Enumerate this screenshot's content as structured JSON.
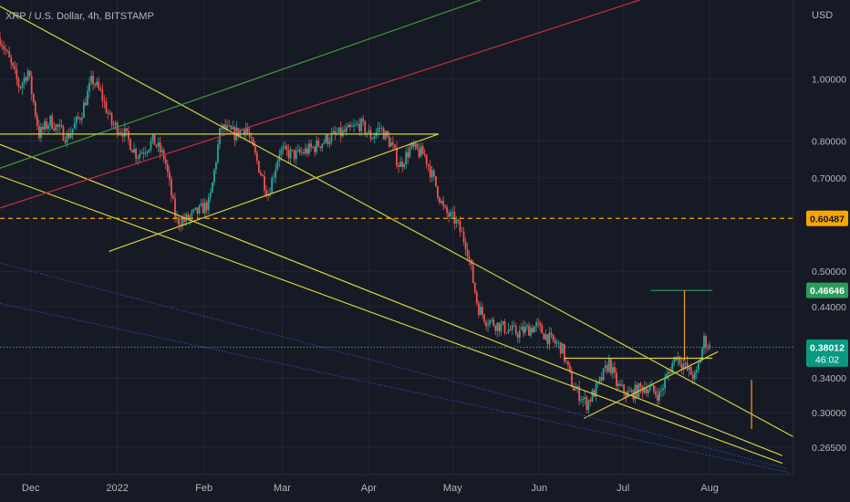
{
  "header": {
    "title": "XRP / U.S. Dollar, 4h, BITSTAMP",
    "currency": "USD"
  },
  "colors": {
    "background": "#161a25",
    "grid": "#232734",
    "axis_text": "#b2b5be",
    "up_candle": "#26a69a",
    "down_candle": "#ef5350",
    "trendline_yellow": "#d4cf3e",
    "line_red": "#c2313c",
    "line_green": "#3d9b3d",
    "line_blue": "#3347c8",
    "line_orange": "#f0a020",
    "level_green": "#2e9c5c",
    "price_badge": "#089981",
    "level_badge": "#f7a600"
  },
  "chart_data": {
    "type": "candlestick",
    "y_scale": "log",
    "ylim": [
      0.24,
      1.33
    ],
    "x_start": "2021-11-20",
    "x_end": "2022-08-31",
    "x_ticks": [
      {
        "label": "Dec",
        "date": "2021-12-01"
      },
      {
        "label": "2022",
        "date": "2022-01-01"
      },
      {
        "label": "Feb",
        "date": "2022-02-01"
      },
      {
        "label": "Mar",
        "date": "2022-03-01"
      },
      {
        "label": "Apr",
        "date": "2022-04-01"
      },
      {
        "label": "May",
        "date": "2022-05-01"
      },
      {
        "label": "Jun",
        "date": "2022-06-01"
      },
      {
        "label": "Jul",
        "date": "2022-07-01"
      },
      {
        "label": "Aug",
        "date": "2022-08-01"
      }
    ],
    "y_ticks": [
      "1.00000",
      "0.80000",
      "0.70000",
      "0.50000",
      "0.44000",
      "0.34000",
      "0.30000",
      "0.26500"
    ],
    "price_path": [
      [
        "2021-11-20",
        1.16
      ],
      [
        "2021-11-23",
        1.08
      ],
      [
        "2021-11-27",
        0.97
      ],
      [
        "2021-11-30",
        1.03
      ],
      [
        "2021-12-04",
        0.82
      ],
      [
        "2021-12-08",
        0.86
      ],
      [
        "2021-12-14",
        0.81
      ],
      [
        "2021-12-19",
        0.88
      ],
      [
        "2021-12-23",
        1.0
      ],
      [
        "2021-12-26",
        0.95
      ],
      [
        "2021-12-30",
        0.85
      ],
      [
        "2022-01-03",
        0.83
      ],
      [
        "2022-01-08",
        0.76
      ],
      [
        "2022-01-14",
        0.8
      ],
      [
        "2022-01-18",
        0.75
      ],
      [
        "2022-01-22",
        0.6
      ],
      [
        "2022-01-25",
        0.6
      ],
      [
        "2022-01-30",
        0.62
      ],
      [
        "2022-02-03",
        0.64
      ],
      [
        "2022-02-07",
        0.84
      ],
      [
        "2022-02-12",
        0.82
      ],
      [
        "2022-02-16",
        0.84
      ],
      [
        "2022-02-21",
        0.72
      ],
      [
        "2022-02-24",
        0.66
      ],
      [
        "2022-02-28",
        0.77
      ],
      [
        "2022-03-06",
        0.76
      ],
      [
        "2022-03-12",
        0.78
      ],
      [
        "2022-03-18",
        0.81
      ],
      [
        "2022-03-25",
        0.83
      ],
      [
        "2022-03-29",
        0.85
      ],
      [
        "2022-04-02",
        0.81
      ],
      [
        "2022-04-05",
        0.84
      ],
      [
        "2022-04-09",
        0.79
      ],
      [
        "2022-04-12",
        0.73
      ],
      [
        "2022-04-16",
        0.78
      ],
      [
        "2022-04-21",
        0.76
      ],
      [
        "2022-04-25",
        0.68
      ],
      [
        "2022-04-28",
        0.62
      ],
      [
        "2022-05-02",
        0.6
      ],
      [
        "2022-05-06",
        0.55
      ],
      [
        "2022-05-10",
        0.44
      ],
      [
        "2022-05-13",
        0.42
      ],
      [
        "2022-05-18",
        0.41
      ],
      [
        "2022-05-24",
        0.4
      ],
      [
        "2022-05-31",
        0.41
      ],
      [
        "2022-06-05",
        0.39
      ],
      [
        "2022-06-09",
        0.38
      ],
      [
        "2022-06-13",
        0.33
      ],
      [
        "2022-06-18",
        0.31
      ],
      [
        "2022-06-22",
        0.33
      ],
      [
        "2022-06-26",
        0.36
      ],
      [
        "2022-06-29",
        0.33
      ],
      [
        "2022-07-03",
        0.32
      ],
      [
        "2022-07-09",
        0.33
      ],
      [
        "2022-07-14",
        0.32
      ],
      [
        "2022-07-20",
        0.37
      ],
      [
        "2022-07-24",
        0.35
      ],
      [
        "2022-07-27",
        0.34
      ],
      [
        "2022-07-30",
        0.39
      ],
      [
        "2022-08-01",
        0.38
      ]
    ],
    "annotations": {
      "horizontal_levels": [
        {
          "value": 0.6049,
          "style": "dashed",
          "color": "#f7a600"
        },
        {
          "value": 0.82,
          "from": "2021-11-20",
          "to": "2022-04-26",
          "style": "solid",
          "color": "#d4cf3e"
        },
        {
          "value": 0.4665,
          "from": "2022-07-11",
          "to": "2022-08-02",
          "style": "solid",
          "color": "#2e9c5c"
        },
        {
          "value": 0.3801,
          "style": "dotted",
          "color": "#26a69a"
        },
        {
          "value": 0.3652,
          "from": "2022-06-10",
          "to": "2022-08-02",
          "style": "solid",
          "color": "#d4cf3e"
        }
      ],
      "trendlines": [
        {
          "p1": [
            "2021-11-20",
            1.3
          ],
          "p2": [
            "2022-08-31",
            0.275
          ],
          "color": "#d4cf3e"
        },
        {
          "p1": [
            "2021-11-20",
            0.79
          ],
          "p2": [
            "2022-08-27",
            0.257
          ],
          "color": "#d4cf3e"
        },
        {
          "p1": [
            "2021-11-20",
            0.705
          ],
          "p2": [
            "2022-08-27",
            0.25
          ],
          "color": "#d4cf3e"
        },
        {
          "p1": [
            "2021-12-29",
            0.537
          ],
          "p2": [
            "2022-04-26",
            0.82
          ],
          "color": "#d4cf3e"
        },
        {
          "p1": [
            "2022-06-17",
            0.294
          ],
          "p2": [
            "2022-08-04",
            0.374
          ],
          "color": "#d4cf3e"
        },
        {
          "p1": [
            "2021-11-20",
            0.628
          ],
          "p2": [
            "2022-07-07",
            1.33
          ],
          "color": "#c2313c"
        },
        {
          "p1": [
            "2021-11-20",
            0.725
          ],
          "p2": [
            "2022-05-11",
            1.33
          ],
          "color": "#3d9b3d"
        },
        {
          "p1": [
            "2021-11-20",
            0.515
          ],
          "p2": [
            "2022-08-29",
            0.245
          ],
          "color": "#3347c8",
          "style": "dotted"
        },
        {
          "p1": [
            "2021-11-20",
            0.445
          ],
          "p2": [
            "2022-08-29",
            0.242
          ],
          "color": "#3347c8",
          "style": "dotted"
        }
      ],
      "orange_marks": [
        {
          "date": "2022-07-23",
          "from": 0.362,
          "to": 0.4665
        },
        {
          "date": "2022-08-16",
          "from": 0.283,
          "to": 0.338
        }
      ]
    },
    "price_labels": [
      {
        "label": "0.60487",
        "value": 0.6049,
        "kind": "level"
      },
      {
        "label": "0.46646",
        "value": 0.4665,
        "kind": "target"
      },
      {
        "label": "0.38012",
        "value": 0.3801,
        "kind": "last",
        "countdown": "46:02"
      }
    ]
  }
}
